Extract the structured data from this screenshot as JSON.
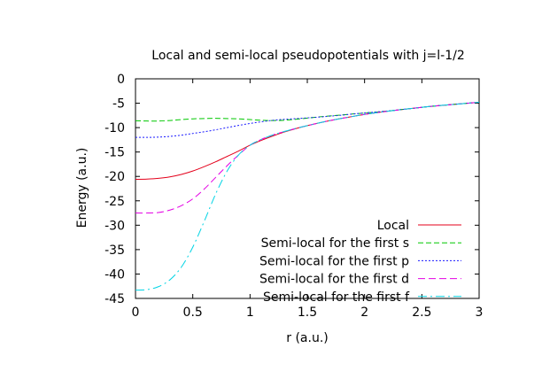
{
  "chart_data": {
    "type": "line",
    "title": "Local and semi-local pseudopotentials with j=l-1/2",
    "xlabel": "r (a.u.)",
    "ylabel": "Energy (a.u.)",
    "xlim": [
      0,
      3
    ],
    "ylim": [
      -45,
      0
    ],
    "xticks": [
      0,
      0.5,
      1,
      1.5,
      2,
      2.5,
      3
    ],
    "xtick_labels": [
      "0",
      "0.5",
      "1",
      "1.5",
      "2",
      "2.5",
      "3"
    ],
    "yticks": [
      0,
      -5,
      -10,
      -15,
      -20,
      -25,
      -30,
      -35,
      -40,
      -45
    ],
    "ytick_labels": [
      "0",
      "-5",
      "-10",
      "-15",
      "-20",
      "-25",
      "-30",
      "-35",
      "-40",
      "-45"
    ],
    "grid": false,
    "legend_position": "bottom-right",
    "series": [
      {
        "name": "Local",
        "color": "#e4001b",
        "dash": "",
        "x": [
          0,
          0.1,
          0.2,
          0.3,
          0.4,
          0.5,
          0.6,
          0.7,
          0.8,
          0.9,
          1.0,
          1.1,
          1.2,
          1.3,
          1.4,
          1.5,
          1.6,
          1.7,
          1.8,
          1.9,
          2.0,
          2.2,
          2.4,
          2.6,
          2.8,
          3.0
        ],
        "y": [
          -20.6,
          -20.55,
          -20.4,
          -20.1,
          -19.6,
          -18.9,
          -18.0,
          -17.0,
          -15.9,
          -14.8,
          -13.6,
          -12.6,
          -11.7,
          -10.9,
          -10.2,
          -9.6,
          -9.05,
          -8.55,
          -8.1,
          -7.7,
          -7.3,
          -6.65,
          -6.1,
          -5.6,
          -5.2,
          -4.8
        ]
      },
      {
        "name": "Semi-local for the first s",
        "color": "#00c800",
        "dash": "6,3",
        "x": [
          0,
          0.1,
          0.2,
          0.3,
          0.4,
          0.5,
          0.6,
          0.7,
          0.8,
          0.9,
          1.0,
          1.1,
          1.2,
          1.3,
          1.4,
          1.5,
          1.6,
          1.7,
          1.8,
          1.9,
          2.0,
          2.2,
          2.4,
          2.6,
          2.8,
          3.0
        ],
        "y": [
          -8.6,
          -8.65,
          -8.65,
          -8.55,
          -8.35,
          -8.2,
          -8.15,
          -8.1,
          -8.15,
          -8.2,
          -8.35,
          -8.5,
          -8.55,
          -8.5,
          -8.3,
          -8.05,
          -7.8,
          -7.6,
          -7.4,
          -7.2,
          -7.0,
          -6.6,
          -6.1,
          -5.6,
          -5.2,
          -4.8
        ]
      },
      {
        "name": "Semi-local for the first p",
        "color": "#1a1aff",
        "dash": "2,2",
        "x": [
          0,
          0.1,
          0.2,
          0.3,
          0.4,
          0.5,
          0.6,
          0.7,
          0.8,
          0.9,
          1.0,
          1.1,
          1.2,
          1.3,
          1.4,
          1.5,
          1.6,
          1.7,
          1.8,
          1.9,
          2.0,
          2.2,
          2.4,
          2.6,
          2.8,
          3.0
        ],
        "y": [
          -12.0,
          -12.0,
          -11.95,
          -11.8,
          -11.55,
          -11.2,
          -10.85,
          -10.45,
          -10.0,
          -9.55,
          -9.15,
          -8.8,
          -8.5,
          -8.3,
          -8.15,
          -8.0,
          -7.85,
          -7.65,
          -7.45,
          -7.2,
          -7.0,
          -6.6,
          -6.1,
          -5.6,
          -5.2,
          -4.8
        ]
      },
      {
        "name": "Semi-local for the first d",
        "color": "#e400e4",
        "dash": "8,4",
        "x": [
          0,
          0.1,
          0.2,
          0.3,
          0.4,
          0.5,
          0.6,
          0.7,
          0.8,
          0.9,
          1.0,
          1.1,
          1.2,
          1.3,
          1.4,
          1.5,
          1.6,
          1.7,
          1.8,
          1.9,
          2.0,
          2.2,
          2.4,
          2.6,
          2.8,
          3.0
        ],
        "y": [
          -27.5,
          -27.5,
          -27.4,
          -26.9,
          -26.0,
          -24.6,
          -22.6,
          -20.2,
          -17.8,
          -15.6,
          -13.6,
          -12.4,
          -11.5,
          -10.8,
          -10.15,
          -9.6,
          -9.05,
          -8.55,
          -8.1,
          -7.7,
          -7.3,
          -6.65,
          -6.1,
          -5.6,
          -5.2,
          -4.8
        ]
      },
      {
        "name": "Semi-local for the first f",
        "color": "#00d4e4",
        "dash": "10,4,2,4",
        "x": [
          0,
          0.1,
          0.2,
          0.3,
          0.4,
          0.5,
          0.6,
          0.7,
          0.8,
          0.9,
          1.0,
          1.1,
          1.2,
          1.3,
          1.4,
          1.5,
          1.6,
          1.7,
          1.8,
          1.9,
          2.0,
          2.2,
          2.4,
          2.6,
          2.8,
          3.0
        ],
        "y": [
          -43.3,
          -43.2,
          -42.6,
          -41.2,
          -38.6,
          -34.5,
          -29.2,
          -23.6,
          -18.9,
          -15.6,
          -13.6,
          -12.4,
          -11.5,
          -10.8,
          -10.15,
          -9.6,
          -9.05,
          -8.55,
          -8.1,
          -7.7,
          -7.3,
          -6.65,
          -6.1,
          -5.6,
          -5.2,
          -4.8
        ]
      }
    ]
  }
}
